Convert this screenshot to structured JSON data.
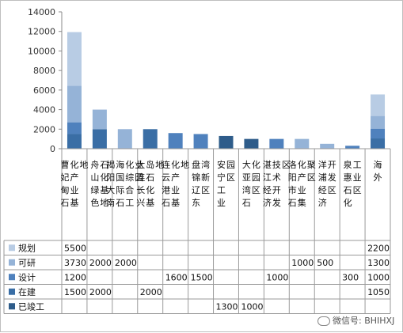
{
  "chart_data": {
    "type": "bar",
    "stacked": true,
    "title": "",
    "xlabel": "",
    "ylabel": "",
    "ylim": [
      0,
      14000
    ],
    "yticks": [
      0,
      2000,
      4000,
      6000,
      8000,
      10000,
      12000,
      14000
    ],
    "grid": false,
    "legend_placement": "data-table-left",
    "categories": [
      "曹妃甸石化产业基地",
      "舟山绿色石化基地",
      "揭阳大南海国际石化综合工业园",
      "大连长兴岛石化基地",
      "连云港石化产业基地",
      "盘锦辽东湾新区",
      "安宁工业园区",
      "大亚湾石化园区",
      "湛江经济技术开发区",
      "洛阳市石化产业集聚区",
      "洋浦经济开发区",
      "泉惠石化工业区",
      "海外"
    ],
    "series": [
      {
        "name": "已竣工",
        "color": "#2e5c8a",
        "values": [
          0,
          0,
          0,
          0,
          0,
          0,
          1300,
          1000,
          0,
          0,
          0,
          0,
          0
        ]
      },
      {
        "name": "在建",
        "color": "#3a6ea5",
        "values": [
          1500,
          2000,
          0,
          2000,
          0,
          0,
          0,
          0,
          0,
          0,
          0,
          0,
          1050
        ]
      },
      {
        "name": "设计",
        "color": "#4f81bd",
        "values": [
          1200,
          0,
          0,
          0,
          1600,
          1500,
          0,
          0,
          1000,
          0,
          0,
          300,
          1000
        ]
      },
      {
        "name": "可研",
        "color": "#95b3d7",
        "values": [
          3730,
          2000,
          2000,
          0,
          0,
          0,
          0,
          0,
          0,
          1000,
          500,
          0,
          1300
        ]
      },
      {
        "name": "规划",
        "color": "#b8cce4",
        "values": [
          5500,
          0,
          0,
          0,
          0,
          0,
          0,
          0,
          0,
          0,
          0,
          0,
          2200
        ]
      }
    ],
    "table_rows": [
      {
        "name": "规划",
        "cells": [
          "5500",
          "",
          "",
          "",
          "",
          "",
          "",
          "",
          "",
          "",
          "",
          "",
          "2200"
        ]
      },
      {
        "name": "可研",
        "cells": [
          "3730",
          "2000",
          "2000",
          "",
          "",
          "",
          "",
          "",
          "",
          "1000",
          "500",
          "",
          "1300"
        ]
      },
      {
        "name": "设计",
        "cells": [
          "1200",
          "",
          "",
          "",
          "1600",
          "1500",
          "",
          "",
          "1000",
          "",
          "",
          "300",
          "1000"
        ]
      },
      {
        "name": "在建",
        "cells": [
          "1500",
          "2000",
          "",
          "2000",
          "",
          "",
          "",
          "",
          "",
          "",
          "",
          "",
          "1050"
        ]
      },
      {
        "name": "已竣工",
        "cells": [
          "",
          "",
          "",
          "",
          "",
          "",
          "1300",
          "1000",
          "",
          "",
          "",
          "",
          ""
        ]
      }
    ]
  },
  "colors": {
    "规划": "#b8cce4",
    "可研": "#95b3d7",
    "设计": "#4f81bd",
    "在建": "#3a6ea5",
    "已竣工": "#2e5c8a"
  },
  "watermark": {
    "text": "微信号: BHIHXJ",
    "icon": "wechat-icon"
  }
}
